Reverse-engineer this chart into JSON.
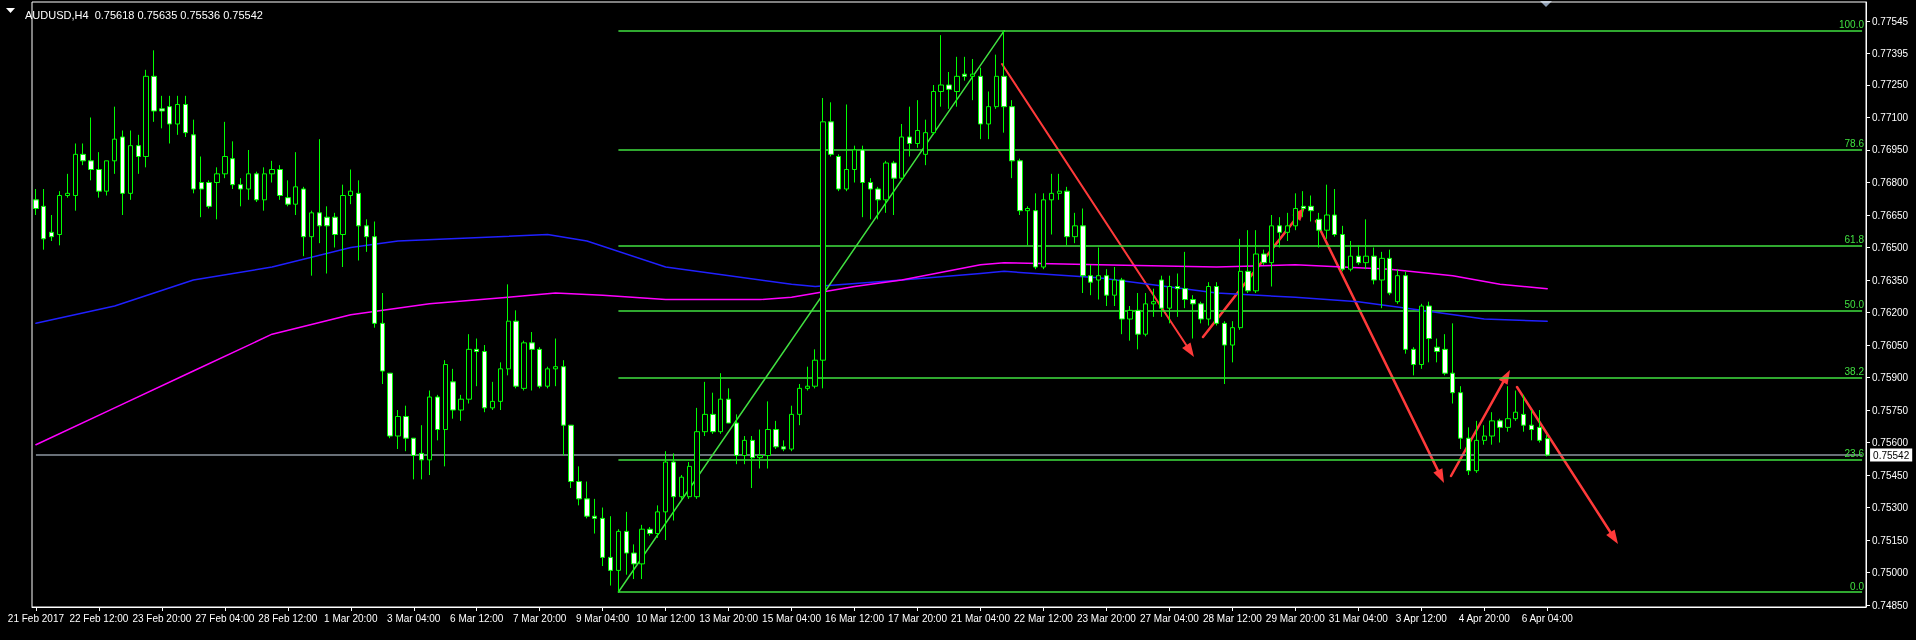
{
  "chart_data": {
    "type": "candlestick",
    "title": "AUDUSD,H4  0.75618 0.75635 0.75536 0.75542",
    "color": "#00ff00",
    "marker": "none",
    "categories": [
      "21 Feb 2017",
      null,
      null,
      null,
      null,
      null,
      null,
      null,
      "22 Feb 12:00",
      null,
      null,
      null,
      null,
      null,
      null,
      null,
      "23 Feb 20:00",
      null,
      null,
      null,
      null,
      null,
      null,
      null,
      "27 Feb 04:00",
      null,
      null,
      null,
      null,
      null,
      null,
      null,
      "28 Feb 12:00",
      null,
      null,
      null,
      null,
      null,
      null,
      null,
      "1 Mar 20:00",
      null,
      null,
      null,
      null,
      null,
      null,
      null,
      "3 Mar 04:00",
      null,
      null,
      null,
      null,
      null,
      null,
      null,
      "6 Mar 12:00",
      null,
      null,
      null,
      null,
      null,
      null,
      null,
      "7 Mar 20:00",
      null,
      null,
      null,
      null,
      null,
      null,
      null,
      "9 Mar 04:00",
      null,
      null,
      null,
      null,
      null,
      null,
      null,
      "10 Mar 12:00",
      null,
      null,
      null,
      null,
      null,
      null,
      null,
      "13 Mar 20:00",
      null,
      null,
      null,
      null,
      null,
      null,
      null,
      "15 Mar 04:00",
      null,
      null,
      null,
      null,
      null,
      null,
      null,
      "16 Mar 12:00",
      null,
      null,
      null,
      null,
      null,
      null,
      null,
      "17 Mar 20:00",
      null,
      null,
      null,
      null,
      null,
      null,
      null,
      "21 Mar 04:00",
      null,
      null,
      null,
      null,
      null,
      null,
      null,
      "22 Mar 12:00",
      null,
      null,
      null,
      null,
      null,
      null,
      null,
      "23 Mar 20:00",
      null,
      null,
      null,
      null,
      null,
      null,
      null,
      "27 Mar 04:00",
      null,
      null,
      null,
      null,
      null,
      null,
      null,
      "28 Mar 12:00",
      null,
      null,
      null,
      null,
      null,
      null,
      null,
      "29 Mar 20:00",
      null,
      null,
      null,
      null,
      null,
      null,
      null,
      "31 Mar 04:00",
      null,
      null,
      null,
      null,
      null,
      null,
      null,
      "3 Apr 12:00",
      null,
      null,
      null,
      null,
      null,
      null,
      null,
      "4 Apr 20:00",
      null,
      null,
      null,
      null,
      null,
      null,
      null,
      "6 Apr 04:00",
      null,
      null,
      null,
      null,
      null,
      null,
      null,
      null,
      null,
      null,
      null,
      null,
      null,
      null,
      null,
      null,
      null,
      null,
      null,
      null,
      null,
      null,
      null,
      null,
      null,
      null,
      null,
      null,
      null,
      null,
      null,
      null,
      null,
      null,
      null,
      null,
      null,
      null,
      null,
      null
    ],
    "ohlc": [
      [
        0.7672,
        0.7677,
        0.7665,
        0.7668
      ],
      [
        0.7669,
        0.7677,
        0.7649,
        0.7654
      ],
      [
        0.7657,
        0.7665,
        0.7653,
        0.7655
      ],
      [
        0.7656,
        0.7676,
        0.7651,
        0.7674
      ],
      [
        0.7674,
        0.7684,
        0.7673,
        0.7675
      ],
      [
        0.7674,
        0.7698,
        0.7667,
        0.7693
      ],
      [
        0.7693,
        0.7698,
        0.7688,
        0.769
      ],
      [
        0.769,
        0.771,
        0.7681,
        0.7686
      ],
      [
        0.7686,
        0.7694,
        0.7673,
        0.7676
      ],
      [
        0.7676,
        0.769,
        0.7674,
        0.769
      ],
      [
        0.769,
        0.7715,
        0.7684,
        0.77
      ],
      [
        0.7701,
        0.7704,
        0.7665,
        0.7675
      ],
      [
        0.7675,
        0.7704,
        0.7672,
        0.7697
      ],
      [
        0.7697,
        0.7702,
        0.7684,
        0.7692
      ],
      [
        0.7692,
        0.7732,
        0.7687,
        0.7729
      ],
      [
        0.7729,
        0.7741,
        0.7708,
        0.7713
      ],
      [
        0.7714,
        0.772,
        0.7705,
        0.7713
      ],
      [
        0.7715,
        0.772,
        0.7698,
        0.7707
      ],
      [
        0.7707,
        0.772,
        0.7702,
        0.7716
      ],
      [
        0.7716,
        0.772,
        0.7701,
        0.7703
      ],
      [
        0.7702,
        0.7709,
        0.7675,
        0.7677
      ],
      [
        0.768,
        0.7692,
        0.7664,
        0.7677
      ],
      [
        0.768,
        0.7681,
        0.7668,
        0.7669
      ],
      [
        0.768,
        0.7687,
        0.7663,
        0.7684
      ],
      [
        0.7684,
        0.7708,
        0.7682,
        0.7692
      ],
      [
        0.7691,
        0.7699,
        0.7677,
        0.7679
      ],
      [
        0.7679,
        0.7682,
        0.7669,
        0.7677
      ],
      [
        0.7677,
        0.7695,
        0.7672,
        0.7684
      ],
      [
        0.7684,
        0.7685,
        0.7671,
        0.7672
      ],
      [
        0.7672,
        0.7687,
        0.7667,
        0.7684
      ],
      [
        0.7684,
        0.769,
        0.768,
        0.7686
      ],
      [
        0.7686,
        0.7688,
        0.7672,
        0.7674
      ],
      [
        0.7673,
        0.7681,
        0.7669,
        0.767
      ],
      [
        0.767,
        0.7694,
        0.7665,
        0.7678
      ],
      [
        0.7677,
        0.7678,
        0.7646,
        0.7655
      ],
      [
        0.7655,
        0.7667,
        0.7637,
        0.7666
      ],
      [
        0.7666,
        0.77,
        0.7652,
        0.766
      ],
      [
        0.7664,
        0.7669,
        0.7638,
        0.766
      ],
      [
        0.7664,
        0.7666,
        0.765,
        0.7656
      ],
      [
        0.7656,
        0.7679,
        0.7641,
        0.7674
      ],
      [
        0.7674,
        0.7686,
        0.767,
        0.7676
      ],
      [
        0.7675,
        0.7681,
        0.7644,
        0.766
      ],
      [
        0.766,
        0.7663,
        0.7648,
        0.7655
      ],
      [
        0.7655,
        0.7662,
        0.7613,
        0.7615
      ],
      [
        0.7615,
        0.7629,
        0.7587,
        0.7593
      ],
      [
        0.7592,
        0.7592,
        0.7562,
        0.7563
      ],
      [
        0.7563,
        0.7575,
        0.7557,
        0.7572
      ],
      [
        0.7572,
        0.7577,
        0.7556,
        0.7562
      ],
      [
        0.7562,
        0.7562,
        0.7543,
        0.7554
      ],
      [
        0.7555,
        0.7568,
        0.7543,
        0.7552
      ],
      [
        0.7552,
        0.7584,
        0.7545,
        0.7581
      ],
      [
        0.7581,
        0.7582,
        0.7561,
        0.7566
      ],
      [
        0.7566,
        0.7598,
        0.7549,
        0.7596
      ],
      [
        0.7588,
        0.7594,
        0.7571,
        0.7575
      ],
      [
        0.7575,
        0.7582,
        0.757,
        0.758
      ],
      [
        0.758,
        0.761,
        0.7578,
        0.7603
      ],
      [
        0.7603,
        0.7608,
        0.7586,
        0.7602
      ],
      [
        0.7602,
        0.7605,
        0.7574,
        0.7576
      ],
      [
        0.7576,
        0.7588,
        0.7575,
        0.7579
      ],
      [
        0.7579,
        0.7597,
        0.7575,
        0.7594
      ],
      [
        0.7594,
        0.7633,
        0.7591,
        0.7616
      ],
      [
        0.7616,
        0.7621,
        0.7585,
        0.7586
      ],
      [
        0.7585,
        0.7607,
        0.7584,
        0.7606
      ],
      [
        0.7606,
        0.7611,
        0.7584,
        0.7603
      ],
      [
        0.7603,
        0.7604,
        0.7585,
        0.7586
      ],
      [
        0.7586,
        0.7595,
        0.7585,
        0.7594
      ],
      [
        0.7594,
        0.7608,
        0.7586,
        0.7595
      ],
      [
        0.7595,
        0.7598,
        0.7554,
        0.7568
      ],
      [
        0.7568,
        0.7568,
        0.7539,
        0.7542
      ],
      [
        0.7542,
        0.7549,
        0.7531,
        0.7534
      ],
      [
        0.7534,
        0.7542,
        0.7525,
        0.7526
      ],
      [
        0.7526,
        0.7534,
        0.7518,
        0.7525
      ],
      [
        0.7525,
        0.753,
        0.7503,
        0.7507
      ],
      [
        0.7507,
        0.7526,
        0.7494,
        0.7501
      ],
      [
        0.7501,
        0.752,
        0.7491,
        0.7519
      ],
      [
        0.7519,
        0.7528,
        0.7499,
        0.7509
      ],
      [
        0.7509,
        0.7513,
        0.7497,
        0.7504
      ],
      [
        0.7504,
        0.7522,
        0.7497,
        0.752
      ],
      [
        0.752,
        0.7521,
        0.7517,
        0.7518
      ],
      [
        0.7518,
        0.7531,
        0.7516,
        0.7528
      ],
      [
        0.7528,
        0.7556,
        0.7515,
        0.7551
      ],
      [
        0.7551,
        0.7555,
        0.7524,
        0.7535
      ],
      [
        0.7535,
        0.7545,
        0.7534,
        0.7544
      ],
      [
        0.7535,
        0.7551,
        0.7534,
        0.7549
      ],
      [
        0.7535,
        0.7576,
        0.7534,
        0.7565
      ],
      [
        0.7565,
        0.7588,
        0.7563,
        0.7573
      ],
      [
        0.7573,
        0.7583,
        0.7564,
        0.7565
      ],
      [
        0.7565,
        0.7592,
        0.7564,
        0.758
      ],
      [
        0.758,
        0.7585,
        0.7569,
        0.7569
      ],
      [
        0.7569,
        0.7573,
        0.755,
        0.7554
      ],
      [
        0.7554,
        0.7563,
        0.755,
        0.7561
      ],
      [
        0.7561,
        0.7563,
        0.7539,
        0.7553
      ],
      [
        0.7553,
        0.7566,
        0.7548,
        0.7554
      ],
      [
        0.7554,
        0.7579,
        0.7548,
        0.7566
      ],
      [
        0.7566,
        0.757,
        0.7557,
        0.7558
      ],
      [
        0.7558,
        0.7561,
        0.7556,
        0.7557
      ],
      [
        0.7557,
        0.7577,
        0.7556,
        0.7573
      ],
      [
        0.7573,
        0.7587,
        0.7568,
        0.7585
      ],
      [
        0.7585,
        0.7595,
        0.7584,
        0.7586
      ],
      [
        0.7586,
        0.7603,
        0.7585,
        0.7598
      ],
      [
        0.7598,
        0.7719,
        0.7585,
        0.7708
      ],
      [
        0.7708,
        0.7717,
        0.7692,
        0.7693
      ],
      [
        0.7692,
        0.7693,
        0.7676,
        0.7677
      ],
      [
        0.7677,
        0.7716,
        0.7676,
        0.7686
      ],
      [
        0.7686,
        0.7697,
        0.768,
        0.7695
      ],
      [
        0.7695,
        0.7697,
        0.7664,
        0.768
      ],
      [
        0.768,
        0.7682,
        0.7663,
        0.7677
      ],
      [
        0.7677,
        0.7678,
        0.7663,
        0.7672
      ],
      [
        0.7672,
        0.769,
        0.7666,
        0.7689
      ],
      [
        0.7689,
        0.769,
        0.7665,
        0.7682
      ],
      [
        0.7682,
        0.7707,
        0.7681,
        0.7701
      ],
      [
        0.7701,
        0.7715,
        0.7692,
        0.7698
      ],
      [
        0.7698,
        0.7718,
        0.7696,
        0.7704
      ],
      [
        0.7693,
        0.7709,
        0.7688,
        0.7703
      ],
      [
        0.7703,
        0.7725,
        0.7702,
        0.7722
      ],
      [
        0.7722,
        0.7748,
        0.7715,
        0.7725
      ],
      [
        0.7725,
        0.7731,
        0.7714,
        0.7723
      ],
      [
        0.7722,
        0.7738,
        0.7715,
        0.7729
      ],
      [
        0.773,
        0.7738,
        0.7727,
        0.7729
      ],
      [
        0.7729,
        0.7737,
        0.7718,
        0.773
      ],
      [
        0.7729,
        0.7733,
        0.77,
        0.7707
      ],
      [
        0.7707,
        0.7722,
        0.77,
        0.7715
      ],
      [
        0.7715,
        0.7739,
        0.7714,
        0.7729
      ],
      [
        0.7729,
        0.775,
        0.7703,
        0.7715
      ],
      [
        0.7715,
        0.7718,
        0.7682,
        0.769
      ],
      [
        0.769,
        0.7691,
        0.7665,
        0.7667
      ],
      [
        0.7667,
        0.7669,
        0.7651,
        0.7668
      ],
      [
        0.7667,
        0.7675,
        0.764,
        0.7641
      ],
      [
        0.7641,
        0.7675,
        0.764,
        0.7672
      ],
      [
        0.7672,
        0.7684,
        0.7656,
        0.7675
      ],
      [
        0.7675,
        0.7684,
        0.7672,
        0.7676
      ],
      [
        0.7676,
        0.7678,
        0.7651,
        0.7655
      ],
      [
        0.7655,
        0.7666,
        0.7652,
        0.766
      ],
      [
        0.766,
        0.7668,
        0.7629,
        0.7637
      ],
      [
        0.7637,
        0.7642,
        0.7628,
        0.7634
      ],
      [
        0.7635,
        0.765,
        0.7626,
        0.7637
      ],
      [
        0.7637,
        0.764,
        0.7623,
        0.7628
      ],
      [
        0.7628,
        0.7641,
        0.7623,
        0.7635
      ],
      [
        0.7635,
        0.7636,
        0.761,
        0.7617
      ],
      [
        0.7617,
        0.7623,
        0.7607,
        0.7621
      ],
      [
        0.7621,
        0.7629,
        0.7603,
        0.761
      ],
      [
        0.761,
        0.7629,
        0.7609,
        0.7624
      ],
      [
        0.7624,
        0.7631,
        0.7618,
        0.7625
      ],
      [
        0.7635,
        0.7637,
        0.7618,
        0.7622
      ],
      [
        0.7622,
        0.7637,
        0.7615,
        0.7632
      ],
      [
        0.7632,
        0.7638,
        0.7618,
        0.7631
      ],
      [
        0.7631,
        0.7648,
        0.7622,
        0.7626
      ],
      [
        0.7626,
        0.7628,
        0.7608,
        0.7624
      ],
      [
        0.7624,
        0.7625,
        0.7615,
        0.7617
      ],
      [
        0.7617,
        0.7634,
        0.7614,
        0.7632
      ],
      [
        0.7632,
        0.7634,
        0.7614,
        0.7615
      ],
      [
        0.7615,
        0.7616,
        0.7587,
        0.7605
      ],
      [
        0.7605,
        0.7616,
        0.7597,
        0.7613
      ],
      [
        0.7613,
        0.7654,
        0.7612,
        0.7639
      ],
      [
        0.7639,
        0.7658,
        0.7629,
        0.763
      ],
      [
        0.763,
        0.7658,
        0.7629,
        0.7647
      ],
      [
        0.7647,
        0.7649,
        0.7642,
        0.7643
      ],
      [
        0.7643,
        0.7665,
        0.7632,
        0.766
      ],
      [
        0.766,
        0.7664,
        0.765,
        0.7657
      ],
      [
        0.7657,
        0.7666,
        0.7653,
        0.766
      ],
      [
        0.766,
        0.7675,
        0.7658,
        0.7668
      ],
      [
        0.7669,
        0.7676,
        0.7664,
        0.7668
      ],
      [
        0.7669,
        0.7674,
        0.7662,
        0.7667
      ],
      [
        0.7663,
        0.7666,
        0.765,
        0.7658
      ],
      [
        0.7658,
        0.7679,
        0.7654,
        0.7665
      ],
      [
        0.7665,
        0.7677,
        0.7655,
        0.7656
      ],
      [
        0.7656,
        0.766,
        0.7639,
        0.764
      ],
      [
        0.764,
        0.7653,
        0.7639,
        0.7646
      ],
      [
        0.7646,
        0.7651,
        0.7642,
        0.7643
      ],
      [
        0.7643,
        0.7663,
        0.764,
        0.7646
      ],
      [
        0.7646,
        0.765,
        0.7633,
        0.7635
      ],
      [
        0.7635,
        0.7648,
        0.7622,
        0.7645
      ],
      [
        0.7645,
        0.7649,
        0.7628,
        0.7629
      ],
      [
        0.7625,
        0.764,
        0.7624,
        0.7637
      ],
      [
        0.7637,
        0.7639,
        0.7601,
        0.7603
      ],
      [
        0.7603,
        0.7604,
        0.7591,
        0.7596
      ],
      [
        0.7596,
        0.7624,
        0.7594,
        0.7623
      ],
      [
        0.7623,
        0.7625,
        0.7597,
        0.7608
      ],
      [
        0.7604,
        0.7608,
        0.7597,
        0.7602
      ],
      [
        0.7603,
        0.761,
        0.7591,
        0.7592
      ],
      [
        0.7592,
        0.7615,
        0.7578,
        0.7583
      ],
      [
        0.7583,
        0.7586,
        0.7557,
        0.7562
      ],
      [
        0.7562,
        0.7567,
        0.7545,
        0.7547
      ],
      [
        0.7547,
        0.757,
        0.7546,
        0.7561
      ],
      [
        0.7561,
        0.7568,
        0.7559,
        0.7563
      ],
      [
        0.7563,
        0.7574,
        0.7559,
        0.757
      ],
      [
        0.757,
        0.7571,
        0.756,
        0.7567
      ],
      [
        0.7567,
        0.7586,
        0.7565,
        0.7571
      ],
      [
        0.7571,
        0.7584,
        0.757,
        0.7574
      ],
      [
        0.7573,
        0.7582,
        0.7565,
        0.7568
      ],
      [
        0.7568,
        0.7575,
        0.7561,
        0.7566
      ],
      [
        0.7567,
        0.7575,
        0.756,
        0.7561
      ],
      [
        0.75618,
        0.75635,
        0.75536,
        0.75542
      ],
      null,
      null,
      null,
      null,
      null,
      null,
      null,
      null,
      null,
      null,
      null,
      null,
      null,
      null,
      null,
      null,
      null,
      null,
      null,
      null,
      null,
      null,
      null,
      null,
      null,
      null,
      null,
      null,
      null,
      null,
      null,
      null,
      null,
      null,
      null,
      null,
      null,
      null,
      null,
      null
    ],
    "series": [
      {
        "type": "line",
        "color": "#2020ff",
        "values": [
          0.7615,
          null,
          null,
          null,
          null,
          null,
          null,
          null,
          null,
          null,
          0.7623,
          null,
          null,
          null,
          null,
          null,
          null,
          null,
          null,
          null,
          0.7635,
          null,
          null,
          null,
          null,
          null,
          null,
          null,
          null,
          null,
          0.7641,
          null,
          null,
          null,
          null,
          null,
          null,
          null,
          null,
          null,
          0.765,
          null,
          null,
          null,
          null,
          null,
          0.7653,
          null,
          null,
          null,
          null,
          null,
          null,
          null,
          null,
          null,
          null,
          null,
          null,
          null,
          null,
          null,
          null,
          null,
          null,
          0.7656,
          null,
          null,
          null,
          null,
          0.7653,
          null,
          null,
          null,
          null,
          null,
          null,
          null,
          null,
          null,
          0.7641,
          null,
          null,
          null,
          null,
          null,
          null,
          null,
          null,
          null,
          null,
          null,
          null,
          null,
          null,
          null,
          0.7633,
          null,
          null,
          0.7632,
          null,
          null,
          null,
          null,
          null,
          null,
          null,
          null,
          null,
          null,
          0.7635,
          null,
          null,
          null,
          null,
          null,
          null,
          null,
          null,
          null,
          0.7638,
          null,
          null,
          0.7639,
          null,
          null,
          null,
          null,
          null,
          null,
          null,
          null,
          null,
          null,
          null,
          0.7636,
          null,
          null,
          null,
          null,
          null,
          null,
          null,
          null,
          null,
          null,
          null,
          null,
          null,
          null,
          0.7629,
          null,
          null,
          null,
          null,
          null,
          null,
          null,
          null,
          null,
          0.7627,
          null,
          null,
          null,
          null,
          null,
          null,
          null,
          0.7625,
          null,
          null,
          null,
          null,
          null,
          null,
          null,
          0.7621,
          null,
          null,
          null,
          null,
          null,
          null,
          null,
          0.7617,
          null,
          null,
          null,
          null,
          null,
          null,
          null,
          0.7616,
          null,
          null,
          null,
          null,
          null,
          null,
          null,
          null,
          null,
          null,
          null,
          null,
          null,
          null,
          null,
          null,
          null,
          null,
          null,
          null,
          null,
          null,
          null,
          null,
          null,
          null,
          null,
          null,
          null,
          null,
          null,
          null,
          null,
          null,
          null,
          null,
          null,
          null,
          null,
          null
        ]
      },
      {
        "type": "line",
        "color": "#ff00ff",
        "values": [
          0.7559,
          null,
          null,
          null,
          null,
          null,
          null,
          null,
          null,
          null,
          0.7576,
          null,
          null,
          null,
          null,
          null,
          null,
          null,
          null,
          null,
          0.7593,
          null,
          null,
          null,
          null,
          null,
          null,
          null,
          null,
          null,
          0.761,
          null,
          null,
          null,
          null,
          null,
          null,
          null,
          null,
          null,
          0.7619,
          null,
          null,
          null,
          null,
          null,
          null,
          null,
          null,
          null,
          0.7624,
          null,
          null,
          null,
          null,
          null,
          null,
          null,
          null,
          null,
          0.7627,
          null,
          null,
          null,
          null,
          null,
          0.7629,
          null,
          null,
          null,
          null,
          null,
          0.7628,
          null,
          null,
          null,
          null,
          null,
          null,
          null,
          0.7626,
          null,
          null,
          null,
          null,
          null,
          null,
          null,
          null,
          null,
          null,
          null,
          0.7626,
          null,
          null,
          null,
          0.7627,
          null,
          null,
          null,
          null,
          null,
          null,
          null,
          0.7632,
          null,
          null,
          null,
          null,
          null,
          0.7635,
          null,
          null,
          null,
          null,
          null,
          null,
          null,
          null,
          null,
          0.7642,
          null,
          null,
          0.7643,
          null,
          null,
          null,
          null,
          null,
          null,
          null,
          null,
          null,
          null,
          null,
          0.7642,
          null,
          null,
          null,
          null,
          null,
          null,
          null,
          null,
          null,
          null,
          null,
          null,
          null,
          null,
          0.7641,
          null,
          null,
          null,
          null,
          null,
          null,
          null,
          null,
          null,
          0.7642,
          null,
          null,
          null,
          null,
          null,
          null,
          null,
          null,
          null,
          null,
          null,
          0.764,
          null,
          null,
          null,
          null,
          null,
          null,
          null,
          0.7637,
          null,
          null,
          null,
          null,
          null,
          0.7633,
          null,
          null,
          null,
          null,
          null,
          0.7631,
          null,
          null,
          null,
          null,
          null,
          null,
          null,
          null,
          null,
          null,
          null,
          null,
          null,
          null,
          null,
          null,
          null,
          null,
          null,
          null,
          null,
          null,
          null,
          null,
          null,
          null,
          null,
          null,
          null,
          null,
          null,
          null,
          null,
          null,
          null,
          null,
          null,
          null,
          null,
          null
        ]
      },
      {
        "type": "line",
        "color": "#40e040",
        "values": [
          null,
          null,
          null,
          null,
          null,
          null,
          null,
          null,
          null,
          null,
          null,
          null,
          null,
          null,
          null,
          null,
          null,
          null,
          null,
          null,
          null,
          null,
          null,
          null,
          null,
          null,
          null,
          null,
          null,
          null,
          null,
          null,
          null,
          null,
          null,
          null,
          null,
          null,
          null,
          null,
          null,
          null,
          null,
          null,
          null,
          null,
          null,
          null,
          null,
          null,
          null,
          null,
          null,
          null,
          null,
          null,
          null,
          null,
          null,
          null,
          null,
          null,
          null,
          null,
          null,
          null,
          null,
          null,
          null,
          null,
          null,
          null,
          null,
          null,
          0.7491,
          null,
          null,
          null,
          null,
          null,
          null,
          null,
          null,
          null,
          null,
          null,
          null,
          null,
          null,
          null,
          null,
          null,
          null,
          null,
          null,
          null,
          null,
          null,
          null,
          null,
          null,
          null,
          null,
          null,
          null,
          null,
          null,
          null,
          null,
          null,
          null,
          null,
          null,
          null,
          null,
          null,
          null,
          null,
          null,
          null,
          null,
          null,
          null,
          0.775,
          null,
          null,
          null,
          null,
          null,
          null,
          null,
          null,
          null,
          null,
          null,
          null,
          null,
          null,
          null,
          null,
          null,
          null,
          null,
          null,
          null,
          null,
          null,
          null,
          null,
          null,
          null,
          null,
          null,
          null,
          null,
          null,
          null,
          null,
          null,
          null,
          null,
          null,
          null,
          null,
          null,
          null,
          null,
          null,
          null,
          null,
          null,
          null,
          null,
          null,
          null,
          null,
          null,
          null,
          null,
          null,
          null,
          null,
          null,
          null,
          null,
          null,
          null,
          null,
          null,
          null,
          null,
          null,
          null,
          null,
          null,
          null,
          null,
          null,
          null,
          null,
          null,
          null,
          null,
          null,
          null,
          null,
          null,
          null,
          null,
          null,
          null,
          null,
          null,
          null,
          null,
          null,
          null,
          null,
          null,
          null,
          null,
          null,
          null,
          null,
          null,
          null,
          null,
          null,
          null,
          null,
          null,
          null,
          null
        ]
      }
    ],
    "annotations": [
      {
        "text": "100.0",
        "y": 0.775
      },
      {
        "text": "78.6",
        "y": 0.7695
      },
      {
        "text": "61.8",
        "y": 0.7651
      },
      {
        "text": "50.0",
        "y": 0.7621
      },
      {
        "text": "38.2",
        "y": 0.759
      },
      {
        "text": "23.6",
        "y": 0.7552
      },
      {
        "text": "0.0",
        "y": 0.7491
      }
    ],
    "ylim": [
      0.74841,
      0.77633
    ],
    "yticks": [
      0.77545,
      0.77395,
      {
        "value": 0.7725,
        "label": "0.77250"
      },
      {
        "value": 0.771,
        "label": "0.77100"
      },
      {
        "value": 0.7695,
        "label": "0.76950"
      },
      {
        "value": 0.768,
        "label": "0.76800"
      },
      {
        "value": 0.7665,
        "label": "0.76650"
      },
      {
        "value": 0.765,
        "label": "0.76500"
      },
      {
        "value": 0.7635,
        "label": "0.76350"
      },
      {
        "value": 0.762,
        "label": "0.76200"
      },
      {
        "value": 0.7605,
        "label": "0.76050"
      },
      {
        "value": 0.759,
        "label": "0.75900"
      },
      {
        "value": 0.7575,
        "label": "0.75750"
      },
      {
        "value": 0.756,
        "label": "0.75600"
      },
      {
        "value": 0.7545,
        "label": "0.75450"
      },
      {
        "value": 0.753,
        "label": "0.75300"
      },
      {
        "value": 0.7515,
        "label": "0.75150"
      },
      {
        "value": 0.75,
        "label": "0.75000"
      },
      {
        "value": 0.7485,
        "label": "0.74850"
      }
    ],
    "ref_lines": [
      {
        "axis": "y",
        "value": 0.775,
        "color": "#40e040"
      },
      {
        "axis": "y",
        "value": 0.7695,
        "color": "#40e040"
      },
      {
        "axis": "y",
        "value": 0.7651,
        "color": "#40e040"
      },
      {
        "axis": "y",
        "value": 0.7621,
        "color": "#40e040"
      },
      {
        "axis": "y",
        "value": 0.759,
        "color": "#40e040"
      },
      {
        "axis": "y",
        "value": 0.7552,
        "color": "#40e040"
      },
      {
        "axis": "y",
        "value": 0.7491,
        "color": "#40e040"
      },
      {
        "axis": "y",
        "value": 0.75542,
        "label": "0.75542",
        "color": "#8c96a0"
      }
    ]
  }
}
